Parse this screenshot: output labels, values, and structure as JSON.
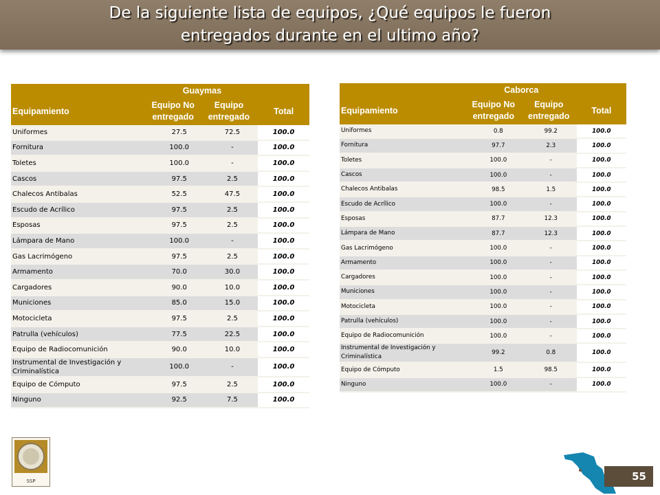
{
  "title": {
    "line1": "De la siguiente lista de equipos, ¿Qué equipos le fueron",
    "line2": "entregados durante en el ultimo año?"
  },
  "table_left": {
    "group": "Guaymas",
    "headers": {
      "col1": "Equipamiento",
      "col2": "Equipo No entregado",
      "col3": "Equipo entregado",
      "col4": "Total"
    },
    "rows": [
      {
        "name": "Uniformes",
        "no": "27.5",
        "yes": "72.5",
        "total": "100.0"
      },
      {
        "name": "Fornitura",
        "no": "100.0",
        "yes": "-",
        "total": "100.0"
      },
      {
        "name": "Toletes",
        "no": "100.0",
        "yes": "-",
        "total": "100.0"
      },
      {
        "name": "Cascos",
        "no": "97.5",
        "yes": "2.5",
        "total": "100.0"
      },
      {
        "name": "Chalecos Antibalas",
        "no": "52.5",
        "yes": "47.5",
        "total": "100.0"
      },
      {
        "name": "Escudo de Acrílico",
        "no": "97.5",
        "yes": "2.5",
        "total": "100.0"
      },
      {
        "name": "Esposas",
        "no": "97.5",
        "yes": "2.5",
        "total": "100.0"
      },
      {
        "name": "Lámpara de Mano",
        "no": "100.0",
        "yes": "-",
        "total": "100.0"
      },
      {
        "name": "Gas Lacrimógeno",
        "no": "97.5",
        "yes": "2.5",
        "total": "100.0"
      },
      {
        "name": "Armamento",
        "no": "70.0",
        "yes": "30.0",
        "total": "100.0"
      },
      {
        "name": "Cargadores",
        "no": "90.0",
        "yes": "10.0",
        "total": "100.0"
      },
      {
        "name": "Municiones",
        "no": "85.0",
        "yes": "15.0",
        "total": "100.0"
      },
      {
        "name": "Motocicleta",
        "no": "97.5",
        "yes": "2.5",
        "total": "100.0"
      },
      {
        "name": "Patrulla (vehículos)",
        "no": "77.5",
        "yes": "22.5",
        "total": "100.0"
      },
      {
        "name": "Equipo de Radiocomunición",
        "no": "90.0",
        "yes": "10.0",
        "total": "100.0"
      },
      {
        "name": "Instrumental de Investigación y Criminalística",
        "no": "100.0",
        "yes": "-",
        "total": "100.0"
      },
      {
        "name": "Equipo de Cómputo",
        "no": "97.5",
        "yes": "2.5",
        "total": "100.0"
      },
      {
        "name": "Ninguno",
        "no": "92.5",
        "yes": "7.5",
        "total": "100.0"
      }
    ]
  },
  "table_right": {
    "group": "Caborca",
    "headers": {
      "col1": "Equipamiento",
      "col2": "Equipo No entregado",
      "col3": "Equipo entregado",
      "col4": "Total"
    },
    "rows": [
      {
        "name": "Uniformes",
        "no": "0.8",
        "yes": "99.2",
        "total": "100.0"
      },
      {
        "name": "Fornitura",
        "no": "97.7",
        "yes": "2.3",
        "total": "100.0"
      },
      {
        "name": "Toletes",
        "no": "100.0",
        "yes": "-",
        "total": "100.0"
      },
      {
        "name": "Cascos",
        "no": "100.0",
        "yes": "-",
        "total": "100.0"
      },
      {
        "name": "Chalecos Antibalas",
        "no": "98.5",
        "yes": "1.5",
        "total": "100.0"
      },
      {
        "name": "Escudo de Acrílico",
        "no": "100.0",
        "yes": "-",
        "total": "100.0"
      },
      {
        "name": "Esposas",
        "no": "87.7",
        "yes": "12.3",
        "total": "100.0"
      },
      {
        "name": "Lámpara de Mano",
        "no": "87.7",
        "yes": "12.3",
        "total": "100.0"
      },
      {
        "name": "Gas Lacrimógeno",
        "no": "100.0",
        "yes": "-",
        "total": "100.0"
      },
      {
        "name": "Armamento",
        "no": "100.0",
        "yes": "-",
        "total": "100.0"
      },
      {
        "name": "Cargadores",
        "no": "100.0",
        "yes": "-",
        "total": "100.0"
      },
      {
        "name": "Municiones",
        "no": "100.0",
        "yes": "-",
        "total": "100.0"
      },
      {
        "name": "Motocicleta",
        "no": "100.0",
        "yes": "-",
        "total": "100.0"
      },
      {
        "name": "Patrulla (vehículos)",
        "no": "100.0",
        "yes": "-",
        "total": "100.0"
      },
      {
        "name": "Equipo de Radiocomunición",
        "no": "100.0",
        "yes": "-",
        "total": "100.0"
      },
      {
        "name": "Instrumental de Investigación y Criminalística",
        "no": "99.2",
        "yes": "0.8",
        "total": "100.0"
      },
      {
        "name": "Equipo de Cómputo",
        "no": "1.5",
        "yes": "98.5",
        "total": "100.0"
      },
      {
        "name": "Ninguno",
        "no": "100.0",
        "yes": "-",
        "total": "100.0"
      }
    ]
  },
  "logo": {
    "label": "SSP"
  },
  "page_number": "55",
  "colors": {
    "title_bar": "#857460",
    "header": "#bb8c00",
    "row_light": "#f3f1e9",
    "row_dark": "#dcdcdc",
    "map": "#1486b0",
    "badge": "#5b4d3a"
  }
}
